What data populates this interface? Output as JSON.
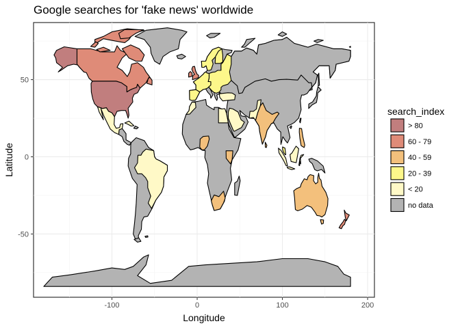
{
  "chart_data": {
    "type": "choropleth-map",
    "title": "Google searches for 'fake news' worldwide",
    "xlabel": "Longitude",
    "ylabel": "Latitude",
    "xlim": [
      -192,
      208
    ],
    "ylim": [
      -91,
      87
    ],
    "x_ticks": [
      -100,
      0,
      100,
      200
    ],
    "x_tick_labels": [
      "-100",
      "0",
      "100",
      "200"
    ],
    "y_ticks": [
      -50,
      0,
      50
    ],
    "y_tick_labels": [
      "-50",
      "0",
      "50"
    ],
    "grid": true,
    "legend_position": "right",
    "legend": {
      "title": "search_index",
      "entries": [
        {
          "label": "> 80",
          "color": "#c17e7e"
        },
        {
          "label": "60 - 79",
          "color": "#df8b78"
        },
        {
          "label": "40 - 59",
          "color": "#f3c07c"
        },
        {
          "label": "20 - 39",
          "color": "#fdf78a"
        },
        {
          "label": "< 20",
          "color": "#fff9c7"
        },
        {
          "label": "no data",
          "color": "#b3b3b3"
        }
      ]
    },
    "regions": [
      {
        "name": "United States",
        "search_index": "> 80"
      },
      {
        "name": "Canada",
        "search_index": "60 - 79"
      },
      {
        "name": "Greenland",
        "search_index": "no data"
      },
      {
        "name": "Mexico",
        "search_index": "< 20"
      },
      {
        "name": "Brazil",
        "search_index": "< 20"
      },
      {
        "name": "India",
        "search_index": "40 - 59"
      },
      {
        "name": "Australia",
        "search_index": "40 - 59"
      },
      {
        "name": "New Zealand",
        "search_index": "60 - 79"
      },
      {
        "name": "Russia",
        "search_index": "no data"
      },
      {
        "name": "Antarctica",
        "search_index": "no data"
      }
    ]
  }
}
